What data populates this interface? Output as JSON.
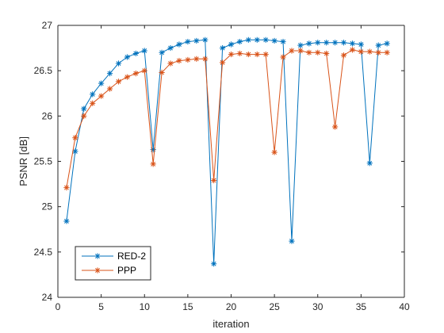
{
  "chart_data": {
    "type": "line",
    "xlabel": "iteration",
    "ylabel": "PSNR [dB]",
    "xlim": [
      0,
      40
    ],
    "ylim": [
      24,
      27
    ],
    "xticks": [
      0,
      5,
      10,
      15,
      20,
      25,
      30,
      35,
      40
    ],
    "yticks": [
      24,
      24.5,
      25,
      25.5,
      26,
      26.5,
      27
    ],
    "grid": false,
    "legend_position": "bottom-left",
    "marker": "asterisk",
    "series": [
      {
        "name": "RED-2",
        "color": "#0072BD",
        "x": [
          1,
          2,
          3,
          4,
          5,
          6,
          7,
          8,
          9,
          10,
          11,
          12,
          13,
          14,
          15,
          16,
          17,
          18,
          19,
          20,
          21,
          22,
          23,
          24,
          25,
          26,
          27,
          28,
          29,
          30,
          31,
          32,
          33,
          34,
          35,
          36,
          37,
          38
        ],
        "values": [
          24.84,
          25.61,
          26.08,
          26.24,
          26.36,
          26.47,
          26.58,
          26.65,
          26.69,
          26.72,
          25.63,
          26.7,
          26.75,
          26.79,
          26.82,
          26.83,
          26.84,
          24.37,
          26.75,
          26.79,
          26.82,
          26.84,
          26.84,
          26.84,
          26.83,
          26.82,
          24.62,
          26.78,
          26.8,
          26.81,
          26.81,
          26.81,
          26.81,
          26.8,
          26.79,
          25.48,
          26.78,
          26.8
        ]
      },
      {
        "name": "PPP",
        "color": "#D95319",
        "x": [
          1,
          2,
          3,
          4,
          5,
          6,
          7,
          8,
          9,
          10,
          11,
          12,
          13,
          14,
          15,
          16,
          17,
          18,
          19,
          20,
          21,
          22,
          23,
          24,
          25,
          26,
          27,
          28,
          29,
          30,
          31,
          32,
          33,
          34,
          35,
          36,
          37,
          38
        ],
        "values": [
          25.21,
          25.76,
          26.0,
          26.14,
          26.22,
          26.3,
          26.38,
          26.43,
          26.47,
          26.5,
          25.47,
          26.48,
          26.58,
          26.61,
          26.62,
          26.63,
          26.63,
          25.29,
          26.59,
          26.68,
          26.69,
          26.68,
          26.68,
          26.68,
          25.6,
          26.65,
          26.72,
          26.72,
          26.7,
          26.7,
          26.69,
          25.88,
          26.67,
          26.73,
          26.71,
          26.71,
          26.7,
          26.7
        ]
      }
    ]
  }
}
